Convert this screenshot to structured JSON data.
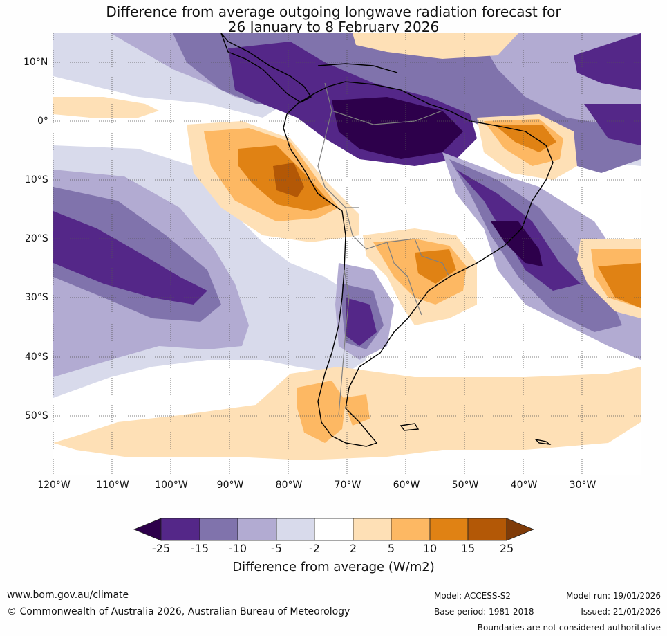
{
  "title": {
    "line1": "Difference from average outgoing longwave radiation forecast for",
    "line2": "26 January to 8 February 2026"
  },
  "lat_labels": [
    "10°N",
    "0°",
    "10°S",
    "20°S",
    "30°S",
    "40°S",
    "50°S"
  ],
  "lon_labels": [
    "120°W",
    "110°W",
    "100°W",
    "90°W",
    "80°W",
    "70°W",
    "60°W",
    "50°W",
    "40°W",
    "30°W"
  ],
  "colorbar": {
    "colors": [
      "#2d004b",
      "#542788",
      "#8073ac",
      "#b2abd2",
      "#d8daeb",
      "#ffffff",
      "#fee0b6",
      "#fdb863",
      "#e08214",
      "#b35806",
      "#7f3b08"
    ],
    "labels": [
      "-25",
      "-15",
      "-10",
      "-5",
      "-2",
      "2",
      "5",
      "10",
      "15",
      "25"
    ],
    "title": "Difference from average (W/m2)"
  },
  "footer": {
    "url": "www.bom.gov.au/climate",
    "copyright": "© Commonwealth of Australia 2026, Australian Bureau of Meteorology",
    "model": "Model: ACCESS-S2",
    "base_period": "Base period: 1981-2018",
    "model_run": "Model run: 19/01/2026",
    "issued": "Issued: 21/01/2026",
    "disclaimer": "Boundaries are not considered authoritative"
  },
  "colors": {
    "land_outline": "#000000",
    "border": "#808080",
    "grid": "#555555"
  }
}
